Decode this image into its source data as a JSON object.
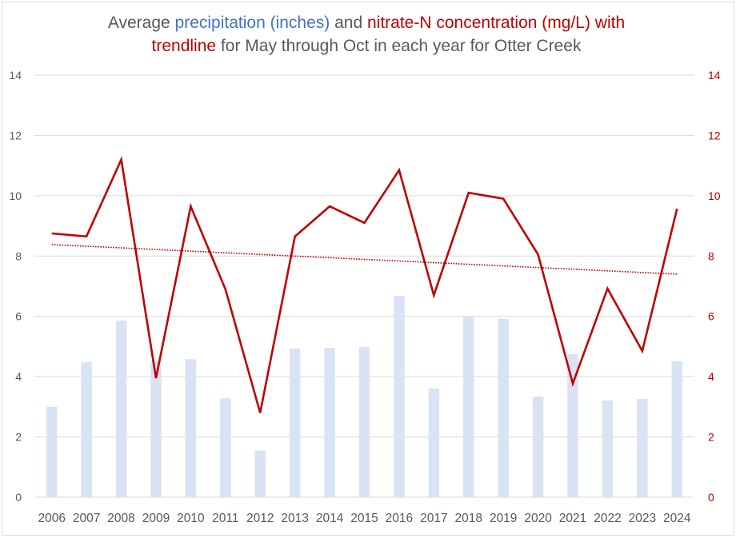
{
  "title": {
    "part1": "Average ",
    "part2": "precipitation (inches)",
    "part3": " and ",
    "part4": "nitrate-N concentration (mg/L) with",
    "part5": "trendline",
    "part6": " for May through Oct in each year for Otter Creek"
  },
  "colors": {
    "bar": "#dae3f3",
    "line": "#c00000",
    "trend": "#c00000",
    "grid": "#d9d9d9",
    "left_axis_text": "#595959",
    "right_axis_text": "#c00000"
  },
  "chart_data": {
    "type": "bar",
    "title": "Average precipitation (inches) and nitrate-N concentration (mg/L) with trendline for May through Oct in each year for Otter Creek",
    "categories": [
      "2006",
      "2007",
      "2008",
      "2009",
      "2010",
      "2011",
      "2012",
      "2013",
      "2014",
      "2015",
      "2016",
      "2017",
      "2018",
      "2019",
      "2020",
      "2021",
      "2022",
      "2023",
      "2024"
    ],
    "series": [
      {
        "name": "Average precipitation (inches)",
        "type": "bar",
        "axis": "left",
        "values": [
          3.0,
          4.48,
          5.86,
          4.53,
          4.58,
          3.29,
          1.55,
          4.93,
          4.96,
          4.99,
          6.68,
          3.61,
          6.02,
          5.92,
          3.34,
          4.75,
          3.21,
          3.26,
          4.51
        ]
      },
      {
        "name": "Nitrate-N concentration (mg/L)",
        "type": "line",
        "axis": "right",
        "values": [
          8.75,
          8.65,
          11.2,
          3.95,
          9.65,
          6.9,
          2.8,
          8.65,
          9.65,
          9.1,
          10.85,
          6.7,
          10.1,
          9.9,
          8.05,
          3.77,
          6.92,
          4.85,
          9.57
        ]
      },
      {
        "name": "Linear trendline (nitrate-N)",
        "type": "trendline",
        "axis": "right",
        "start": 8.38,
        "end": 7.4
      }
    ],
    "y_left": {
      "ylim": [
        0,
        14
      ],
      "ticks": [
        "0",
        "2",
        "4",
        "6",
        "8",
        "10",
        "12",
        "14"
      ]
    },
    "y_right": {
      "ylim": [
        0,
        14
      ],
      "ticks": [
        "0",
        "2",
        "4",
        "6",
        "8",
        "10",
        "12",
        "14"
      ]
    },
    "xlabel": "",
    "ylabel": "",
    "grid": true,
    "legend": "none"
  }
}
